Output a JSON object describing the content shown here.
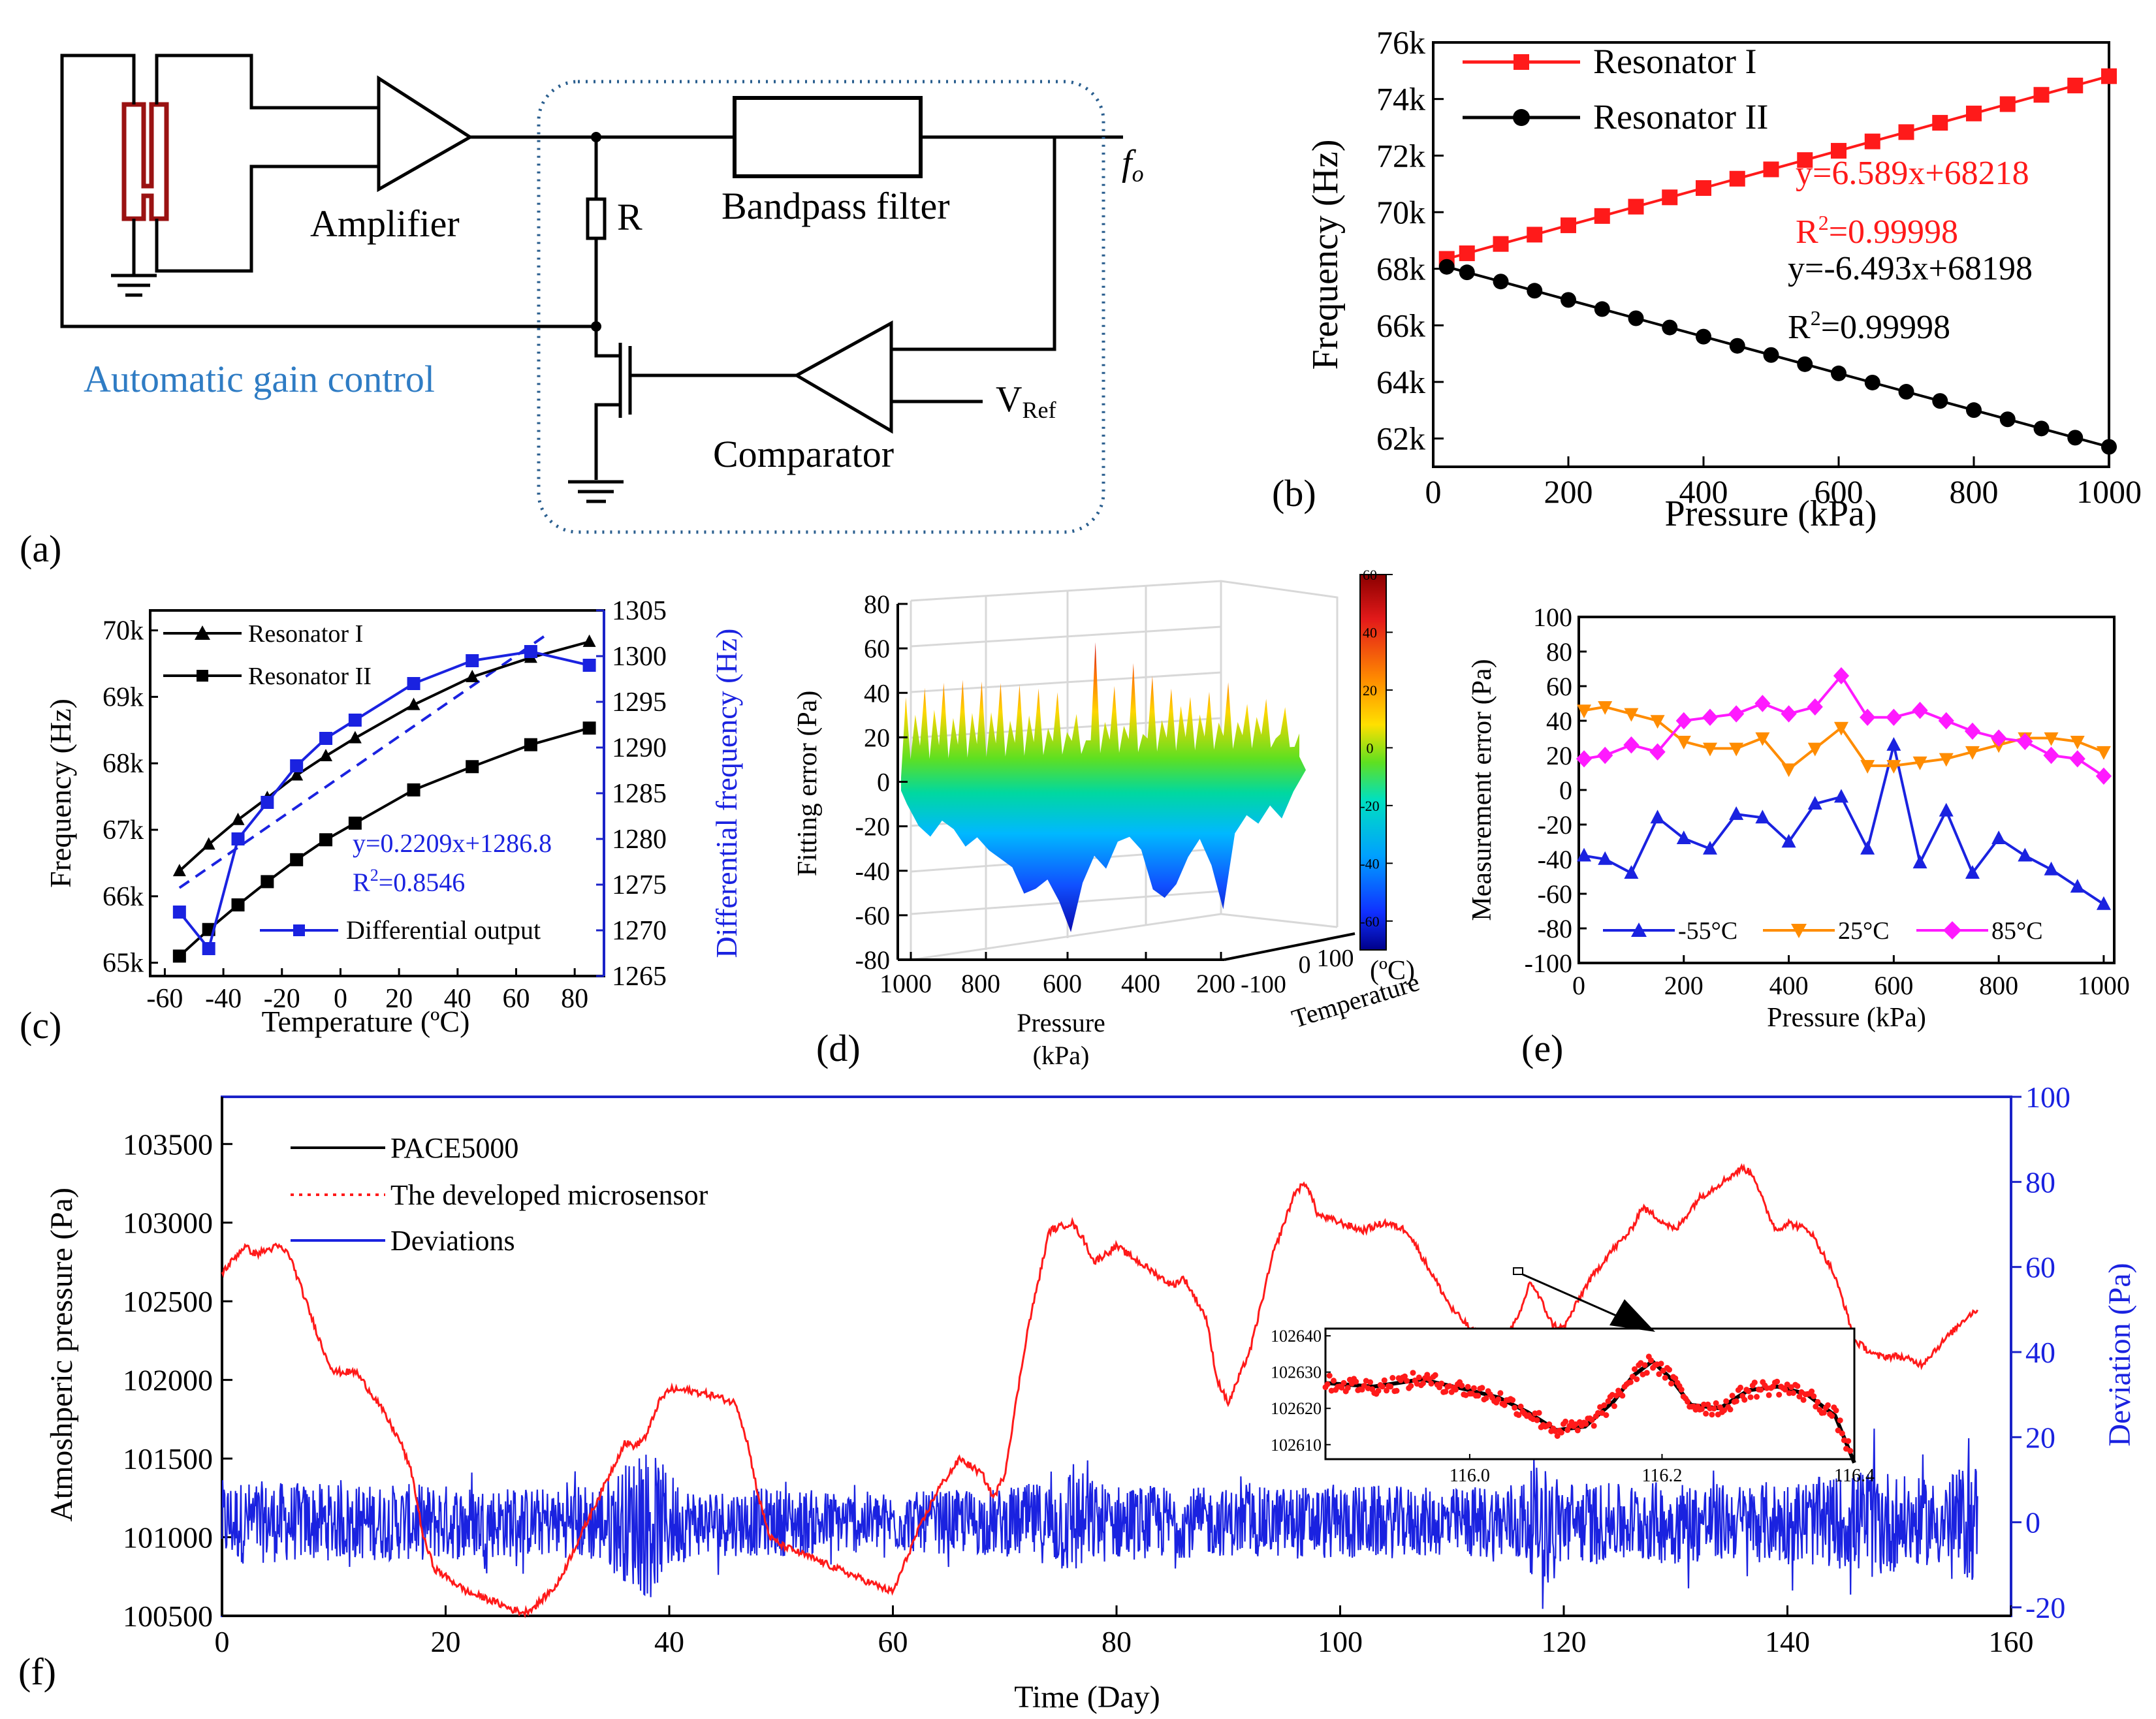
{
  "panel_labels": {
    "a": "(a)",
    "b": "(b)",
    "c": "(c)",
    "d": "(d)",
    "e": "(e)",
    "f": "(f)"
  },
  "circuit": {
    "amplifier": "Amplifier",
    "resistor": "R",
    "bandpass": "Bandpass filter",
    "output": "f",
    "output_sub": "o",
    "agc": "Automatic gain control",
    "comparator": "Comparator",
    "vref": "V",
    "vref_sub": "Ref",
    "colors": {
      "agc": "#2f7cc4",
      "box": "#2a5e8e"
    }
  },
  "chart_data": [
    {
      "id": "b",
      "type": "line",
      "xlabel": "Pressure (kPa)",
      "ylabel": "Frequency (Hz)",
      "xlim": [
        0,
        1000
      ],
      "ylim": [
        61000,
        76000
      ],
      "xticks": [
        0,
        200,
        400,
        600,
        800,
        1000
      ],
      "xtick_labels": [
        "0",
        "200",
        "400",
        "600",
        "800",
        "1000"
      ],
      "yticks": [
        62000,
        64000,
        66000,
        68000,
        70000,
        72000,
        74000,
        76000
      ],
      "ytick_labels": [
        "62k",
        "64k",
        "66k",
        "68k",
        "70k",
        "72k",
        "74k",
        "76k"
      ],
      "x": [
        20,
        50,
        100,
        150,
        200,
        250,
        300,
        350,
        400,
        450,
        500,
        550,
        600,
        650,
        700,
        750,
        800,
        850,
        900,
        950,
        1000
      ],
      "series": [
        {
          "name": "Resonator I",
          "color": "#ff1a1a",
          "marker": "square",
          "values": [
            68350,
            68547,
            68877,
            69206,
            69536,
            69865,
            70195,
            70524,
            70854,
            71183,
            71513,
            71842,
            72171,
            72501,
            72830,
            73160,
            73489,
            73819,
            74148,
            74478,
            74807
          ]
        },
        {
          "name": "Resonator II",
          "color": "#000000",
          "marker": "circle",
          "values": [
            68068,
            67873,
            67549,
            67224,
            66899,
            66575,
            66250,
            65925,
            65601,
            65276,
            64952,
            64627,
            64302,
            63978,
            63653,
            63328,
            63004,
            62679,
            62354,
            62030,
            61705
          ]
        }
      ],
      "annotations": {
        "eq1": "y=6.589x+68218",
        "r2_1": "R",
        "r2_1b": "=0.99998",
        "eq2": "y=-6.493x+68198",
        "r2_2": "R",
        "r2_2b": "=0.99998"
      }
    },
    {
      "id": "c",
      "type": "line",
      "xlabel": "Temperature (ºC)",
      "ylabel": "Frequency (Hz)",
      "y2label": "Differential frequency (Hz)",
      "xlim": [
        -65,
        90
      ],
      "ylim": [
        64800,
        70300
      ],
      "y2lim": [
        1265,
        1305
      ],
      "xticks": [
        -60,
        -40,
        -20,
        0,
        20,
        40,
        60,
        80
      ],
      "xtick_labels": [
        "-60",
        "-40",
        "-20",
        "0",
        "20",
        "40",
        "60",
        "80"
      ],
      "yticks": [
        65000,
        66000,
        67000,
        68000,
        69000,
        70000
      ],
      "ytick_labels": [
        "65k",
        "66k",
        "67k",
        "68k",
        "69k",
        "70k"
      ],
      "y2ticks": [
        1265,
        1270,
        1275,
        1280,
        1285,
        1290,
        1295,
        1300,
        1305
      ],
      "y2tick_labels": [
        "1265",
        "1270",
        "1275",
        "1280",
        "1285",
        "1290",
        "1295",
        "1300",
        "1305"
      ],
      "x": [
        -55,
        -45,
        -35,
        -25,
        -15,
        -5,
        5,
        25,
        45,
        65,
        85
      ],
      "series": [
        {
          "name": "Resonator I",
          "color": "#000000",
          "marker": "triangle",
          "axis": "left",
          "values": [
            66380,
            66780,
            67150,
            67480,
            67820,
            68110,
            68380,
            68880,
            69300,
            69590,
            69830
          ]
        },
        {
          "name": "Resonator II",
          "color": "#000000",
          "marker": "square",
          "axis": "left",
          "values": [
            65100,
            65500,
            65870,
            66220,
            66550,
            66850,
            67100,
            67600,
            67950,
            68280,
            68530
          ]
        },
        {
          "name": "Differential output",
          "color": "#1a22e0",
          "marker": "square",
          "axis": "right",
          "values": [
            1272,
            1268,
            1280,
            1284,
            1288,
            1291,
            1293,
            1297,
            1299.5,
            1300.5,
            1299
          ]
        }
      ],
      "fit_line": {
        "slope": 0.2209,
        "intercept": 1286.8,
        "xrange": [
          -55,
          70
        ],
        "color": "#1a22e0"
      },
      "annotations": {
        "eq": "y=0.2209x+1286.8",
        "r2": "R",
        "r2b": "=0.8546"
      }
    },
    {
      "id": "d",
      "type": "heatmap",
      "title": "",
      "xlabel": "Pressure",
      "xlabel2": "(kPa)",
      "ylabel": "Fitting error (Pa)",
      "zlabel": "Temperature",
      "colorbar_label": "(ºC)",
      "zlim": [
        -80,
        80
      ],
      "zticks": [
        -80,
        -60,
        -40,
        -20,
        0,
        20,
        40,
        60,
        80
      ],
      "ztick_labels": [
        "-80",
        "-60",
        "-40",
        "-20",
        "0",
        "20",
        "40",
        "60",
        "80"
      ],
      "xticks": [
        1000,
        800,
        600,
        400,
        200
      ],
      "xtick_labels": [
        "1000",
        "800",
        "600",
        "400",
        "200"
      ],
      "tticks": [
        "-100",
        "0",
        "100"
      ],
      "colorbar": {
        "ticks": [
          "60",
          "40",
          "20",
          "0",
          "-20",
          "-40",
          "-60"
        ],
        "range": [
          -70,
          60
        ]
      },
      "upper_peaks": [
        38,
        30,
        42,
        32,
        44,
        28,
        45,
        30,
        44,
        30,
        43,
        26,
        42,
        28,
        40,
        22,
        38,
        20,
        28,
        16,
        60,
        24,
        40,
        22,
        50,
        18,
        44,
        24,
        38,
        30,
        34,
        26,
        36,
        22,
        40,
        22,
        30,
        24,
        32,
        14,
        28,
        10
      ],
      "lower_values": [
        -10,
        -20,
        -25,
        -18,
        -22,
        -30,
        -26,
        -32,
        -36,
        -40,
        -52,
        -50,
        -46,
        -56,
        -70,
        -48,
        -36,
        -42,
        -30,
        -28,
        -34,
        -52,
        -56,
        -50,
        -38,
        -30,
        -42,
        -62,
        -28,
        -20,
        -24,
        -16,
        -22,
        -10
      ]
    },
    {
      "id": "e",
      "type": "line",
      "xlabel": "Pressure (kPa)",
      "ylabel": "Measurement error (Pa)",
      "xlim": [
        0,
        1020
      ],
      "ylim": [
        -100,
        100
      ],
      "xticks": [
        0,
        200,
        400,
        600,
        800,
        1000
      ],
      "xtick_labels": [
        "0",
        "200",
        "400",
        "600",
        "800",
        "1000"
      ],
      "yticks": [
        -100,
        -80,
        -60,
        -40,
        -20,
        0,
        20,
        40,
        60,
        80,
        100
      ],
      "ytick_labels": [
        "-100",
        "-80",
        "-60",
        "-40",
        "-20",
        "0",
        "20",
        "40",
        "60",
        "80",
        "100"
      ],
      "x": [
        10,
        50,
        100,
        150,
        200,
        250,
        300,
        350,
        400,
        450,
        500,
        550,
        600,
        650,
        700,
        750,
        800,
        850,
        900,
        950,
        1000
      ],
      "series": [
        {
          "name": "-55°C",
          "color": "#1a22e0",
          "marker": "triangle",
          "values": [
            -38,
            -40,
            -48,
            -16,
            -28,
            -34,
            -14,
            -16,
            -30,
            -8,
            -4,
            -34,
            26,
            -42,
            -12,
            -48,
            -28,
            -38,
            -46,
            -56,
            -66
          ]
        },
        {
          "name": "25°C",
          "color": "#ff8c00",
          "marker": "triangle-down",
          "values": [
            46,
            48,
            44,
            40,
            28,
            24,
            24,
            30,
            12,
            24,
            36,
            14,
            14,
            16,
            18,
            22,
            26,
            30,
            30,
            28,
            22
          ]
        },
        {
          "name": "85°C",
          "color": "#ff1aff",
          "marker": "diamond",
          "values": [
            18,
            20,
            26,
            22,
            40,
            42,
            44,
            50,
            44,
            48,
            66,
            42,
            42,
            46,
            40,
            34,
            30,
            28,
            20,
            18,
            8
          ]
        }
      ]
    },
    {
      "id": "f",
      "type": "line",
      "xlabel": "Time (Day)",
      "ylabel": "Atmoshperic pressure (Pa)",
      "y2label": "Deviation (Pa)",
      "xlim": [
        0,
        160
      ],
      "ylim": [
        100500,
        103800
      ],
      "y2lim": [
        -22,
        100
      ],
      "xticks": [
        0,
        20,
        40,
        60,
        80,
        100,
        120,
        140,
        160
      ],
      "xtick_labels": [
        "0",
        "20",
        "40",
        "60",
        "80",
        "100",
        "120",
        "140",
        "160"
      ],
      "yticks": [
        100500,
        101000,
        101500,
        102000,
        102500,
        103000,
        103500
      ],
      "ytick_labels": [
        "100500",
        "101000",
        "101500",
        "102000",
        "102500",
        "103000",
        "103500"
      ],
      "y2ticks": [
        -20,
        0,
        20,
        40,
        60,
        80,
        100
      ],
      "y2tick_labels": [
        "-20",
        "0",
        "20",
        "40",
        "60",
        "80",
        "100"
      ],
      "series": [
        {
          "name": "PACE5000",
          "color": "#000000",
          "style": "solid"
        },
        {
          "name": "The developed microsensor",
          "color": "#ff1a1a",
          "style": "dotted",
          "x": [
            0,
            2,
            3,
            5,
            6,
            7,
            9,
            10,
            12,
            14,
            16,
            17,
            18,
            19,
            20,
            22,
            24,
            26,
            27,
            28,
            30,
            32,
            34,
            36,
            37,
            38,
            39,
            40,
            42,
            44,
            46,
            47,
            48,
            49,
            50,
            55,
            60,
            62,
            64,
            66,
            67,
            68,
            69,
            70,
            72,
            74,
            76,
            77,
            78,
            80,
            82,
            84,
            85,
            86,
            88,
            89,
            90,
            92,
            94,
            95,
            96,
            97,
            98,
            100,
            102,
            104,
            106,
            108,
            110,
            112,
            114,
            115,
            116,
            117,
            118,
            119,
            120,
            122,
            124,
            126,
            127,
            128,
            130,
            132,
            134,
            136,
            137,
            138,
            139,
            140,
            142,
            144,
            145,
            146,
            148,
            150,
            152,
            154,
            156,
            157
          ],
          "values": [
            102680,
            102850,
            102800,
            102850,
            102800,
            102600,
            102200,
            102050,
            102050,
            101850,
            101600,
            101400,
            101000,
            100800,
            100750,
            100650,
            100600,
            100540,
            100520,
            100560,
            100700,
            101000,
            101300,
            101600,
            101580,
            101650,
            101850,
            101940,
            101930,
            101900,
            101850,
            101600,
            101250,
            101000,
            100950,
            100800,
            100650,
            101000,
            101300,
            101500,
            101450,
            101400,
            101250,
            101400,
            102300,
            102950,
            103000,
            102900,
            102750,
            102850,
            102750,
            102650,
            102600,
            102650,
            102400,
            102000,
            101850,
            102200,
            102800,
            103000,
            103200,
            103250,
            103050,
            103000,
            102950,
            103000,
            102950,
            102700,
            102450,
            102300,
            102250,
            102300,
            102400,
            102630,
            102500,
            102350,
            102330,
            102600,
            102800,
            102950,
            103100,
            103050,
            102950,
            103150,
            103250,
            103350,
            103300,
            103100,
            102950,
            103000,
            102950,
            102700,
            102500,
            102250,
            102150,
            102150,
            102100,
            102250,
            102400,
            102450
          ]
        },
        {
          "name": "Deviations",
          "color": "#1a22e0",
          "style": "solid",
          "envelope_x": [
            0,
            10,
            20,
            30,
            34,
            36,
            38,
            40,
            42,
            50,
            60,
            70,
            74,
            76,
            78,
            80,
            90,
            100,
            110,
            116,
            118,
            120,
            125,
            130,
            135,
            140,
            145,
            148,
            150,
            153,
            155,
            157
          ],
          "envelope": [
            10,
            9,
            9,
            8,
            10,
            14,
            18,
            12,
            8,
            8,
            7,
            8,
            10,
            14,
            10,
            9,
            8,
            9,
            8,
            10,
            14,
            10,
            9,
            10,
            9,
            10,
            11,
            14,
            11,
            10,
            12,
            15
          ]
        }
      ],
      "inset": {
        "xlim": [
          115.85,
          116.4
        ],
        "ylim": [
          102606,
          102642
        ],
        "xticks": [
          116.0,
          116.2,
          116.4
        ],
        "xtick_labels": [
          "116.0",
          "116.2",
          "116.4"
        ],
        "yticks": [
          102610,
          102620,
          102630,
          102640
        ],
        "ytick_labels": [
          "102610",
          "102620",
          "102630",
          "102640"
        ],
        "x": [
          115.85,
          115.9,
          115.95,
          116.0,
          116.03,
          116.06,
          116.09,
          116.12,
          116.15,
          116.17,
          116.19,
          116.21,
          116.23,
          116.26,
          116.29,
          116.32,
          116.35,
          116.38,
          116.4
        ],
        "values": [
          102627,
          102626,
          102628,
          102625,
          102623,
          102619,
          102614,
          102615,
          102622,
          102629,
          102633,
          102628,
          102621,
          102620,
          102625,
          102626,
          102624,
          102618,
          102605
        ]
      }
    }
  ]
}
